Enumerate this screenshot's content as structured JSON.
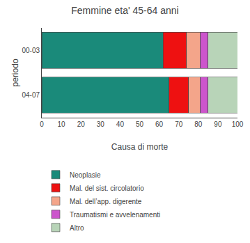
{
  "chart_data": {
    "type": "bar",
    "orientation": "horizontal",
    "stacked": true,
    "title": "Femmine eta' 45-64 anni",
    "xlabel": "Causa di morte",
    "ylabel": "periodo",
    "categories": [
      "00-03",
      "04-07"
    ],
    "series": [
      {
        "name": "Neoplasie",
        "color": "#1a8a7a",
        "values": [
          62,
          65
        ]
      },
      {
        "name": "Mal. del sist. circolatorio",
        "color": "#ee1111",
        "values": [
          12,
          10
        ]
      },
      {
        "name": "Mal. dell’app. digerente",
        "color": "#f4a58a",
        "values": [
          7,
          6
        ]
      },
      {
        "name": "Traumatismi e avvelenamenti",
        "color": "#cc55cc",
        "values": [
          4,
          4
        ]
      },
      {
        "name": "Altro",
        "color": "#b8d4b8",
        "values": [
          15,
          15
        ]
      }
    ],
    "xlim": [
      0,
      100
    ],
    "xticks": [
      0,
      10,
      20,
      30,
      40,
      50,
      60,
      70,
      80,
      90,
      100
    ],
    "grid": false,
    "legend": "bottom"
  }
}
